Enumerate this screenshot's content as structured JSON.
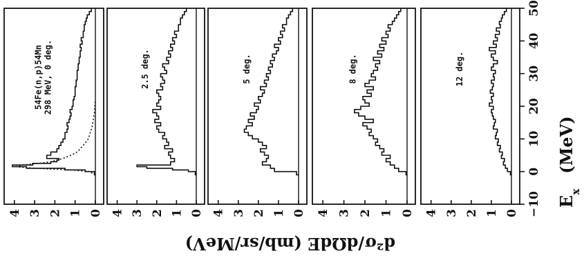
{
  "chart_data": {
    "type": "line",
    "layout_note": "",
    "ylabel": "d²σ/dΩdE (mb/sr/MeV)",
    "xlabel": "E_x (MeV)",
    "xlabel_main": "E",
    "xlabel_sub": "x",
    "xlabel_unit": "(MeV)",
    "x_ticks": [
      -10,
      0,
      10,
      20,
      30,
      40,
      50
    ],
    "xlim": [
      -10,
      50
    ],
    "ylim": [
      0,
      4.3
    ],
    "y_ticks": [
      4,
      3,
      2,
      1,
      0
    ],
    "panels": [
      {
        "annotation_lines": [
          "54Fe(n,p)54Mn",
          "298 MeV, 0 deg."
        ],
        "series": [
          {
            "style": "histogram",
            "x": [
              -1,
              0,
              0.5,
              1,
              1.5,
              2,
              2.5,
              3,
              3.5,
              4,
              5,
              6,
              7,
              8,
              9,
              10,
              11,
              12,
              13,
              14,
              15,
              16,
              17,
              18,
              19,
              20,
              21,
              22,
              23,
              24,
              25,
              26,
              27,
              28,
              29,
              30,
              31,
              32,
              33,
              34,
              35,
              36,
              37,
              38,
              39,
              40,
              41,
              42,
              43,
              44,
              45,
              46,
              47,
              48,
              49
            ],
            "values": [
              0.05,
              0.5,
              1.5,
              3.4,
              4.1,
              3.1,
              2.2,
              1.9,
              1.8,
              2.4,
              2.2,
              1.9,
              1.8,
              1.7,
              1.6,
              1.5,
              1.5,
              1.4,
              1.35,
              1.4,
              1.3,
              1.25,
              1.2,
              1.25,
              1.15,
              1.1,
              1.1,
              1.05,
              1.0,
              1.0,
              1.0,
              0.95,
              0.95,
              0.9,
              0.9,
              0.9,
              0.85,
              0.85,
              0.8,
              0.8,
              0.75,
              0.75,
              0.7,
              0.75,
              0.65,
              0.7,
              0.6,
              0.6,
              0.55,
              0.55,
              0.5,
              0.45,
              0.4,
              0.3,
              0.2
            ]
          },
          {
            "style": "dotted",
            "x": [
              -1,
              0,
              0.5,
              1,
              1.5,
              2,
              2.5,
              3,
              4,
              5,
              6,
              8,
              10,
              14,
              18,
              22
            ],
            "values": [
              0.0,
              0.3,
              1.2,
              3.0,
              3.9,
              3.6,
              2.8,
              2.2,
              1.6,
              1.2,
              0.9,
              0.6,
              0.35,
              0.15,
              0.05,
              0.0
            ]
          }
        ]
      },
      {
        "annotation_lines": [
          "2.5 deg."
        ],
        "series": [
          {
            "style": "histogram",
            "x": [
              -1,
              0,
              0.5,
              1,
              1.5,
              2,
              3,
              4,
              5,
              6,
              7,
              8,
              9,
              10,
              11,
              12,
              13,
              14,
              15,
              16,
              17,
              18,
              19,
              20,
              21,
              22,
              23,
              24,
              25,
              26,
              27,
              28,
              29,
              30,
              31,
              32,
              33,
              34,
              35,
              36,
              37,
              38,
              39,
              40,
              41,
              42,
              43,
              44,
              45,
              46,
              47,
              48,
              49
            ],
            "values": [
              0.05,
              0.4,
              1.2,
              2.5,
              3.0,
              1.3,
              1.1,
              1.3,
              1.4,
              1.2,
              1.6,
              1.4,
              1.5,
              1.7,
              1.6,
              1.9,
              2.0,
              1.8,
              2.1,
              1.9,
              2.0,
              2.2,
              1.8,
              2.0,
              1.9,
              1.8,
              1.9,
              2.0,
              1.7,
              1.8,
              1.6,
              1.7,
              1.8,
              1.5,
              1.6,
              1.7,
              1.4,
              1.5,
              1.3,
              1.4,
              1.2,
              1.3,
              1.1,
              1.2,
              1.0,
              1.1,
              0.9,
              0.9,
              0.8,
              0.8,
              0.7,
              0.6,
              0.5
            ]
          }
        ]
      },
      {
        "annotation_lines": [
          "5 deg."
        ],
        "series": [
          {
            "style": "histogram",
            "x": [
              -1,
              0,
              1,
              2,
              3,
              4,
              5,
              6,
              7,
              8,
              9,
              10,
              11,
              12,
              13,
              14,
              15,
              16,
              17,
              18,
              19,
              20,
              21,
              22,
              23,
              24,
              25,
              26,
              27,
              28,
              29,
              30,
              31,
              32,
              33,
              34,
              35,
              36,
              37,
              38,
              39,
              40,
              41,
              42,
              43,
              44,
              45,
              46,
              47,
              48,
              49
            ],
            "values": [
              0.1,
              1.2,
              1.4,
              1.8,
              1.6,
              1.5,
              1.7,
              1.9,
              1.6,
              1.8,
              2.0,
              2.3,
              2.5,
              2.7,
              2.6,
              2.3,
              2.5,
              2.2,
              2.4,
              2.1,
              2.0,
              2.2,
              1.9,
              2.0,
              1.8,
              1.7,
              1.9,
              1.6,
              1.7,
              1.5,
              1.6,
              1.4,
              1.5,
              1.3,
              1.4,
              1.2,
              1.3,
              1.1,
              1.0,
              1.2,
              0.9,
              1.0,
              0.8,
              0.9,
              0.7,
              0.8,
              0.6,
              0.6,
              0.5,
              0.4,
              0.3
            ]
          }
        ]
      },
      {
        "annotation_lines": [
          "8 deg."
        ],
        "series": [
          {
            "style": "histogram",
            "x": [
              -1,
              0,
              1,
              2,
              3,
              4,
              5,
              6,
              7,
              8,
              9,
              10,
              11,
              12,
              13,
              14,
              15,
              16,
              17,
              18,
              19,
              20,
              21,
              22,
              23,
              24,
              25,
              26,
              27,
              28,
              29,
              30,
              31,
              32,
              33,
              34,
              35,
              36,
              37,
              38,
              39,
              40,
              41,
              42,
              43,
              44,
              45,
              46,
              47,
              48,
              49
            ],
            "values": [
              0.05,
              0.4,
              0.6,
              0.8,
              1.0,
              0.8,
              1.2,
              1.1,
              1.3,
              1.5,
              1.4,
              1.6,
              1.8,
              1.7,
              1.9,
              2.1,
              1.6,
              2.0,
              2.3,
              2.5,
              2.2,
              1.8,
              2.0,
              2.1,
              1.7,
              1.9,
              1.6,
              2.0,
              1.8,
              1.5,
              1.7,
              1.6,
              1.4,
              1.5,
              1.3,
              1.6,
              1.2,
              1.4,
              1.1,
              1.3,
              1.0,
              1.2,
              0.9,
              1.0,
              0.8,
              0.9,
              0.7,
              0.6,
              0.5,
              0.4,
              0.3
            ]
          }
        ]
      },
      {
        "annotation_lines": [
          "12 deg."
        ],
        "series": [
          {
            "style": "histogram",
            "x": [
              -1,
              0,
              1,
              2,
              3,
              4,
              5,
              6,
              7,
              8,
              9,
              10,
              11,
              12,
              13,
              14,
              15,
              16,
              17,
              18,
              19,
              20,
              21,
              22,
              23,
              24,
              25,
              26,
              27,
              28,
              29,
              30,
              31,
              32,
              33,
              34,
              35,
              36,
              37,
              38,
              39,
              40,
              41,
              42,
              43,
              44,
              45,
              46,
              47,
              48,
              49
            ],
            "values": [
              0.05,
              0.2,
              0.3,
              0.4,
              0.35,
              0.5,
              0.45,
              0.6,
              0.55,
              0.7,
              0.65,
              0.8,
              0.75,
              0.7,
              0.9,
              0.85,
              0.8,
              0.9,
              0.95,
              1.0,
              0.9,
              1.1,
              0.95,
              1.0,
              0.9,
              1.05,
              0.95,
              0.9,
              1.0,
              0.85,
              0.9,
              0.8,
              1.0,
              0.9,
              0.7,
              0.9,
              1.0,
              0.8,
              1.1,
              0.75,
              0.9,
              0.7,
              0.8,
              0.6,
              0.75,
              0.55,
              0.6,
              0.5,
              0.45,
              0.35,
              0.25
            ]
          }
        ]
      }
    ]
  }
}
